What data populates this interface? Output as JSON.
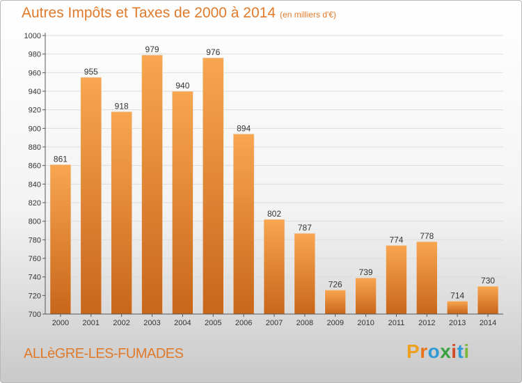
{
  "title": "Autres Impôts et Taxes de 2000 à 2014",
  "unit": "(en milliers d'€)",
  "location": "ALLèGRE-LES-FUMADES",
  "brand": "Proxiti",
  "colors": {
    "bar": "#f59a40",
    "bar_dark": "#c8661a",
    "text": "#e07a2a",
    "grid": "#dcdcdc"
  },
  "chart_data": {
    "type": "bar",
    "title": "Autres Impôts et Taxes de 2000 à 2014",
    "subtitle": "(en milliers d'€)",
    "categories": [
      "2000",
      "2001",
      "2002",
      "2003",
      "2004",
      "2005",
      "2006",
      "2007",
      "2008",
      "2009",
      "2010",
      "2011",
      "2012",
      "2013",
      "2014"
    ],
    "values": [
      861,
      955,
      918,
      979,
      940,
      976,
      894,
      802,
      787,
      726,
      739,
      774,
      778,
      714,
      730
    ],
    "ylim": [
      700,
      1000
    ],
    "yticks": [
      700,
      720,
      740,
      760,
      780,
      800,
      820,
      840,
      860,
      880,
      900,
      920,
      940,
      960,
      980,
      1000
    ],
    "grid": true,
    "legend": "none"
  }
}
